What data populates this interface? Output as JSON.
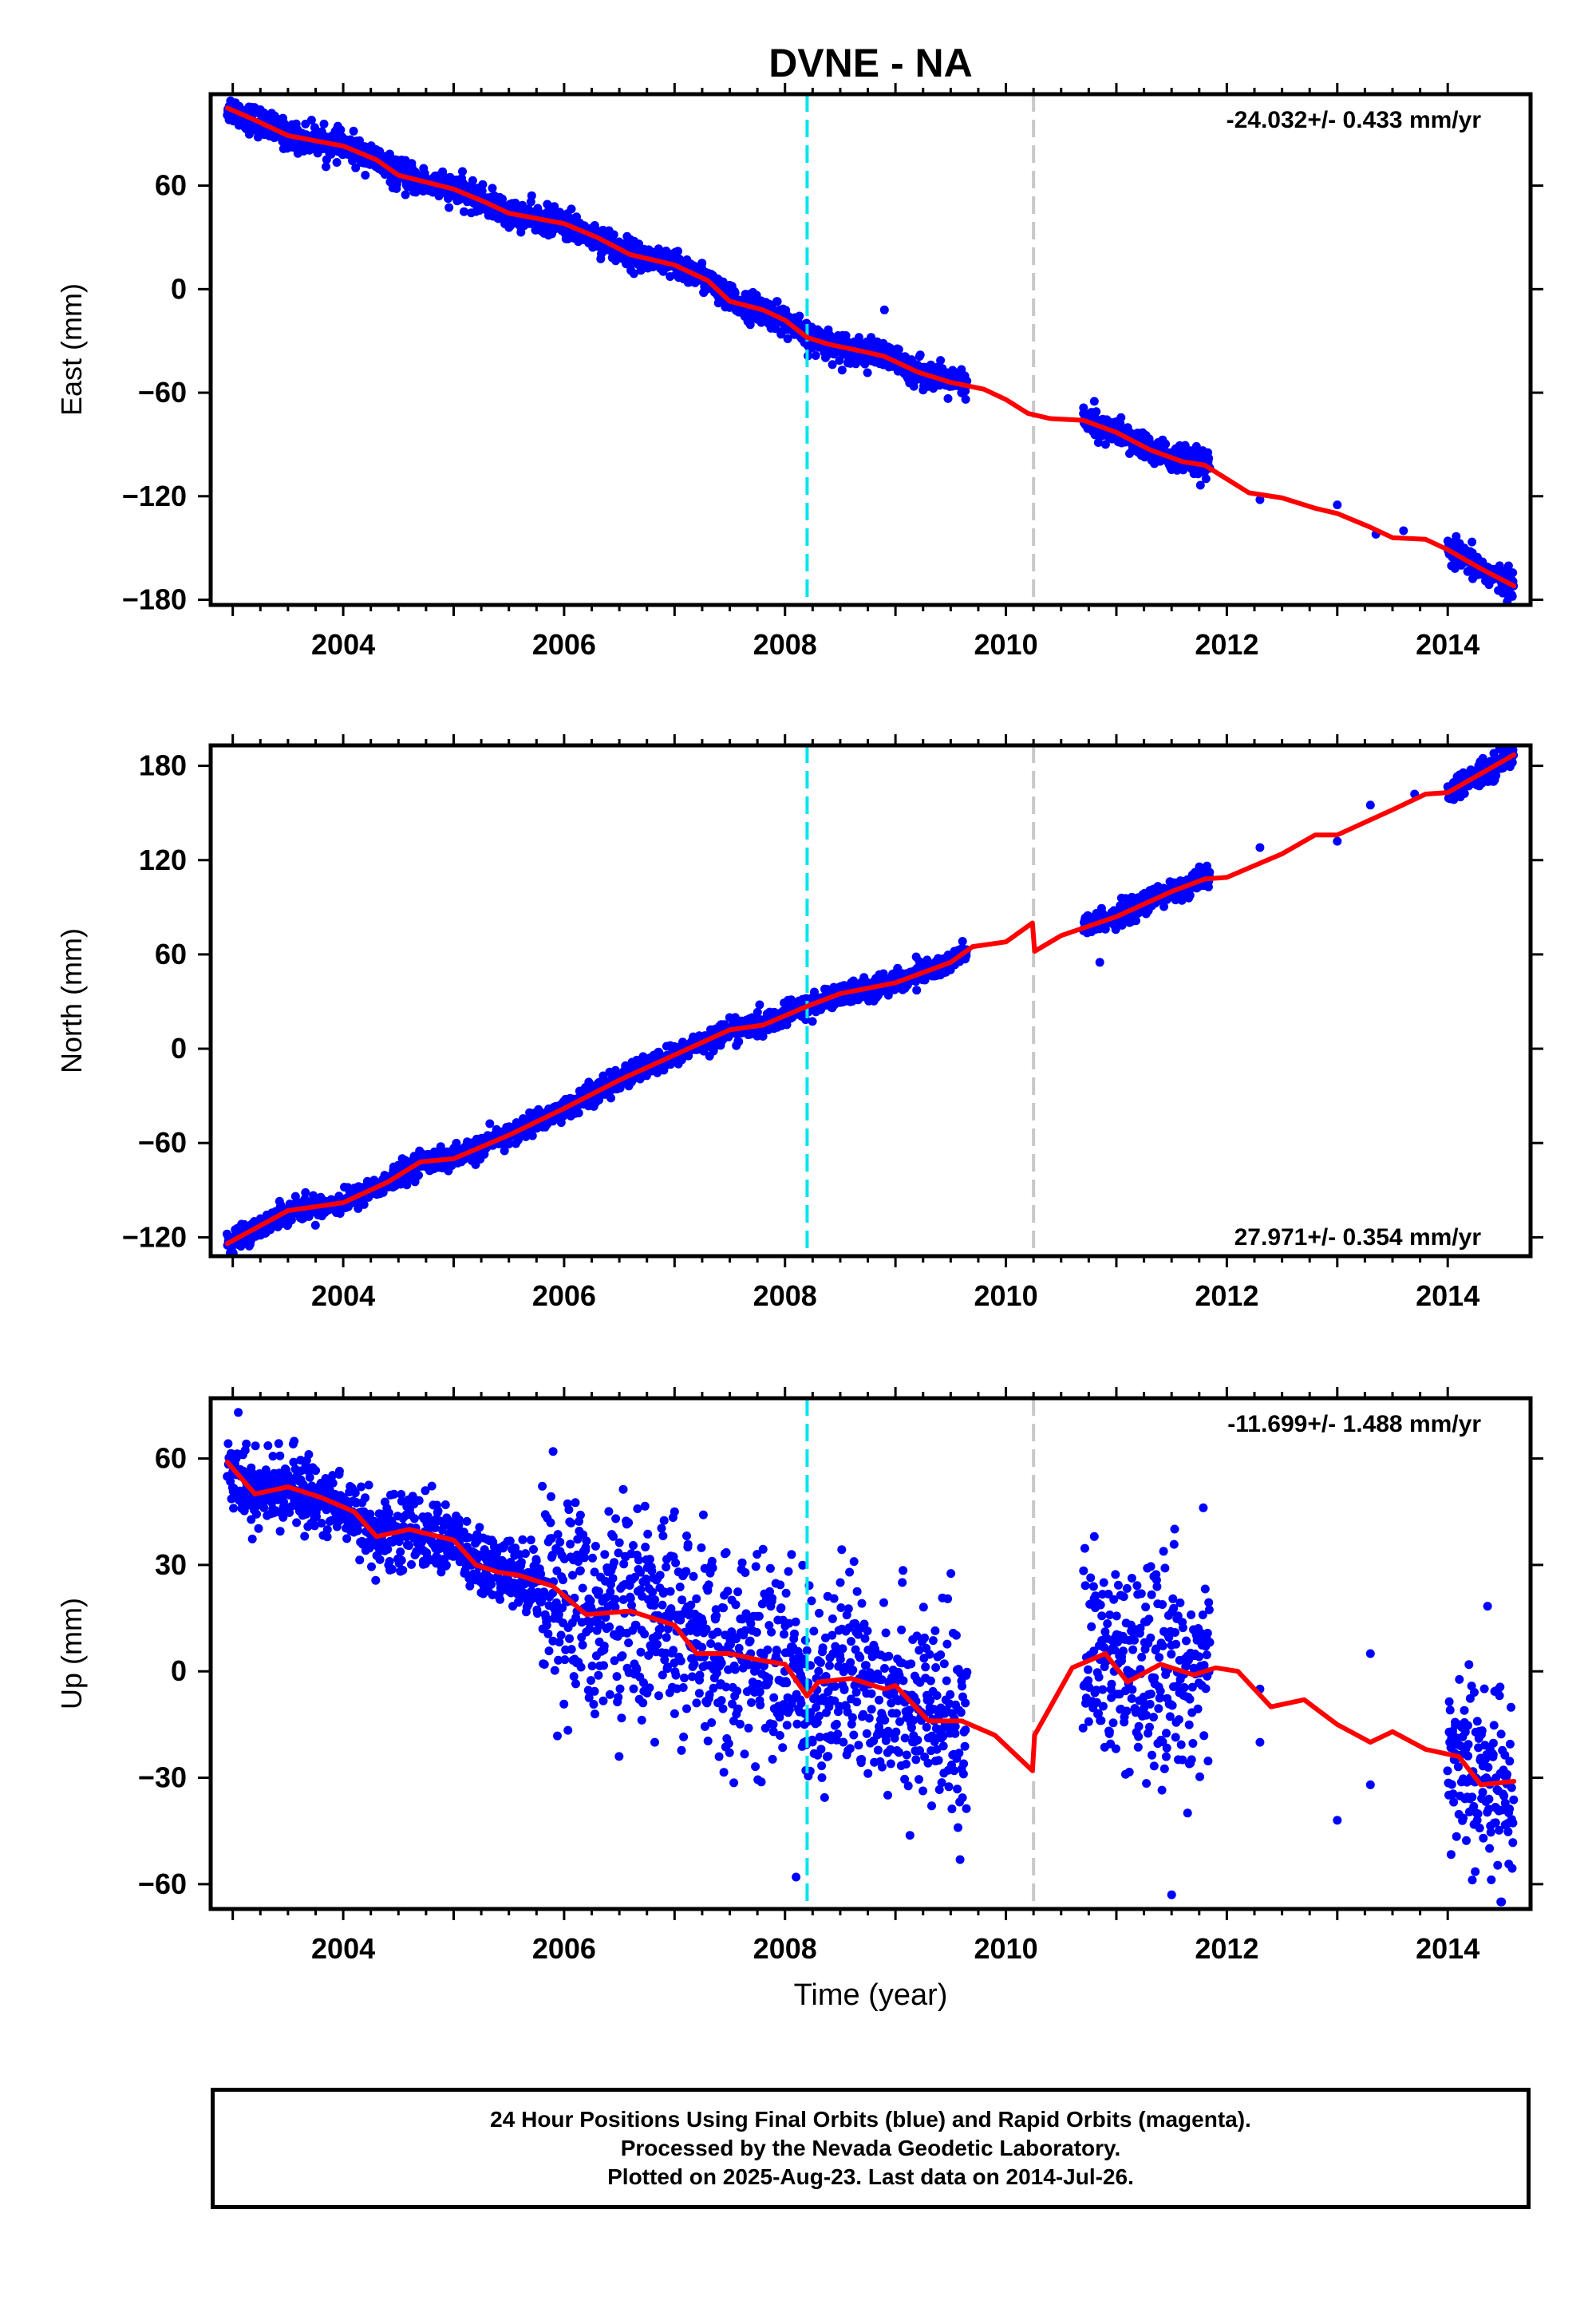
{
  "title": "DVNE - NA",
  "xlabel": "Time (year)",
  "x_ticks": [
    "2004",
    "2006",
    "2008",
    "2010",
    "2012",
    "2014"
  ],
  "colors": {
    "points": "#0000ff",
    "fit": "#ff0000",
    "event_cyan": "#00e5ee",
    "event_gray": "#c8c8c8",
    "axes": "#000000"
  },
  "chart_data": [
    {
      "type": "scatter",
      "name": "east",
      "ylabel": "East (mm)",
      "rate_label": "-24.032+/- 0.433 mm/yr",
      "rate_position": "top-right",
      "xlim": [
        2002.8,
        2014.75
      ],
      "ylim": [
        -183,
        113
      ],
      "y_ticks": [
        60,
        0,
        -60,
        -120,
        -180
      ],
      "y_tick_labels": [
        "60",
        "0",
        "−60",
        "−120",
        "−180"
      ],
      "event_lines": [
        {
          "x": 2008.2,
          "color": "cyan"
        },
        {
          "x": 2010.25,
          "color": "gray"
        }
      ],
      "fit_line": [
        [
          2002.95,
          105
        ],
        [
          2003.2,
          98
        ],
        [
          2003.5,
          89
        ],
        [
          2004.0,
          83
        ],
        [
          2004.3,
          75
        ],
        [
          2004.5,
          66
        ],
        [
          2005.0,
          58
        ],
        [
          2005.3,
          50
        ],
        [
          2005.5,
          44
        ],
        [
          2006.0,
          38
        ],
        [
          2006.3,
          30
        ],
        [
          2006.6,
          20
        ],
        [
          2007.0,
          14
        ],
        [
          2007.3,
          5
        ],
        [
          2007.5,
          -7
        ],
        [
          2007.8,
          -12
        ],
        [
          2008.0,
          -18
        ],
        [
          2008.2,
          -28
        ],
        [
          2008.4,
          -32
        ],
        [
          2008.7,
          -36
        ],
        [
          2008.9,
          -39
        ],
        [
          2009.2,
          -48
        ],
        [
          2009.5,
          -54
        ],
        [
          2009.8,
          -58
        ],
        [
          2010.0,
          -64
        ],
        [
          2010.2,
          -72
        ],
        [
          2010.4,
          -75
        ],
        [
          2010.7,
          -76
        ],
        [
          2011.0,
          -83
        ],
        [
          2011.3,
          -93
        ],
        [
          2011.6,
          -100
        ],
        [
          2011.8,
          -102
        ],
        [
          2012.0,
          -110
        ],
        [
          2012.2,
          -118
        ],
        [
          2012.5,
          -121
        ],
        [
          2012.8,
          -127
        ],
        [
          2013.0,
          -130
        ],
        [
          2013.3,
          -138
        ],
        [
          2013.5,
          -144
        ],
        [
          2013.8,
          -145
        ],
        [
          2014.0,
          -151
        ],
        [
          2014.3,
          -162
        ],
        [
          2014.6,
          -172
        ]
      ],
      "point_segments": [
        [
          2002.95,
          2009.65
        ],
        [
          2010.7,
          2011.85
        ],
        [
          2014.0,
          2014.6
        ]
      ],
      "sparse_points": [
        [
          2008.9,
          -12
        ],
        [
          2010.8,
          -65
        ],
        [
          2012.3,
          -122
        ],
        [
          2013.0,
          -125
        ],
        [
          2013.35,
          -142
        ],
        [
          2013.6,
          -140
        ]
      ],
      "scatter_sd": 4
    },
    {
      "type": "scatter",
      "name": "north",
      "ylabel": "North (mm)",
      "rate_label": "27.971+/- 0.354 mm/yr",
      "rate_position": "bottom-right",
      "xlim": [
        2002.8,
        2014.75
      ],
      "ylim": [
        -132,
        193
      ],
      "y_ticks": [
        180,
        120,
        60,
        0,
        -60,
        -120
      ],
      "y_tick_labels": [
        "180",
        "120",
        "60",
        "0",
        "−60",
        "−120"
      ],
      "event_lines": [
        {
          "x": 2008.2,
          "color": "cyan"
        },
        {
          "x": 2010.25,
          "color": "gray"
        }
      ],
      "fit_line": [
        [
          2002.95,
          -124
        ],
        [
          2003.5,
          -103
        ],
        [
          2004.0,
          -98
        ],
        [
          2004.4,
          -85
        ],
        [
          2004.7,
          -72
        ],
        [
          2005.0,
          -70
        ],
        [
          2005.5,
          -55
        ],
        [
          2006.0,
          -38
        ],
        [
          2006.5,
          -20
        ],
        [
          2007.0,
          -4
        ],
        [
          2007.5,
          12
        ],
        [
          2007.8,
          15
        ],
        [
          2008.2,
          27
        ],
        [
          2008.5,
          35
        ],
        [
          2009.0,
          42
        ],
        [
          2009.5,
          55
        ],
        [
          2009.7,
          65
        ],
        [
          2010.0,
          68
        ],
        [
          2010.24,
          80
        ],
        [
          2010.26,
          62
        ],
        [
          2010.5,
          72
        ],
        [
          2011.0,
          84
        ],
        [
          2011.5,
          100
        ],
        [
          2011.8,
          108
        ],
        [
          2012.0,
          109
        ],
        [
          2012.5,
          124
        ],
        [
          2012.8,
          136
        ],
        [
          2013.0,
          136
        ],
        [
          2013.5,
          152
        ],
        [
          2013.8,
          162
        ],
        [
          2014.0,
          163
        ],
        [
          2014.6,
          187
        ]
      ],
      "point_segments": [
        [
          2002.95,
          2009.65
        ],
        [
          2010.7,
          2011.85
        ],
        [
          2014.0,
          2014.6
        ]
      ],
      "sparse_points": [
        [
          2010.85,
          55
        ],
        [
          2012.3,
          128
        ],
        [
          2013.0,
          132
        ],
        [
          2013.3,
          155
        ],
        [
          2013.7,
          162
        ]
      ],
      "scatter_sd": 3.5
    },
    {
      "type": "scatter",
      "name": "up",
      "ylabel": "Up (mm)",
      "rate_label": "-11.699+/- 1.488 mm/yr",
      "rate_position": "top-right",
      "xlim": [
        2002.8,
        2014.75
      ],
      "ylim": [
        -67,
        77
      ],
      "y_ticks": [
        60,
        30,
        0,
        -30,
        -60
      ],
      "y_tick_labels": [
        "60",
        "30",
        "0",
        "−30",
        "−60"
      ],
      "event_lines": [
        {
          "x": 2008.2,
          "color": "cyan"
        },
        {
          "x": 2010.25,
          "color": "gray"
        }
      ],
      "fit_line": [
        [
          2002.95,
          59
        ],
        [
          2003.2,
          50
        ],
        [
          2003.5,
          52
        ],
        [
          2003.8,
          49
        ],
        [
          2004.1,
          45
        ],
        [
          2004.3,
          38
        ],
        [
          2004.6,
          40
        ],
        [
          2005.0,
          37
        ],
        [
          2005.2,
          30
        ],
        [
          2005.4,
          28
        ],
        [
          2005.6,
          27
        ],
        [
          2005.9,
          24
        ],
        [
          2006.2,
          16
        ],
        [
          2006.6,
          17
        ],
        [
          2007.0,
          13
        ],
        [
          2007.2,
          5
        ],
        [
          2007.5,
          5
        ],
        [
          2007.8,
          3
        ],
        [
          2008.0,
          2
        ],
        [
          2008.2,
          -7
        ],
        [
          2008.3,
          -3
        ],
        [
          2008.6,
          -2
        ],
        [
          2008.9,
          -5
        ],
        [
          2009.0,
          -4
        ],
        [
          2009.3,
          -14
        ],
        [
          2009.6,
          -14
        ],
        [
          2009.9,
          -18
        ],
        [
          2010.24,
          -28
        ],
        [
          2010.26,
          -18
        ],
        [
          2010.6,
          1
        ],
        [
          2010.9,
          5
        ],
        [
          2011.1,
          -3
        ],
        [
          2011.4,
          2
        ],
        [
          2011.7,
          -1
        ],
        [
          2011.9,
          1
        ],
        [
          2012.1,
          0
        ],
        [
          2012.4,
          -10
        ],
        [
          2012.7,
          -8
        ],
        [
          2013.0,
          -15
        ],
        [
          2013.3,
          -20
        ],
        [
          2013.5,
          -17
        ],
        [
          2013.8,
          -22
        ],
        [
          2014.1,
          -24
        ],
        [
          2014.3,
          -32
        ],
        [
          2014.6,
          -31
        ]
      ],
      "point_segments": [
        [
          2002.95,
          2009.65
        ],
        [
          2010.7,
          2011.85
        ],
        [
          2014.0,
          2014.6
        ]
      ],
      "sparse_points": [
        [
          2003.05,
          73
        ],
        [
          2005.9,
          62
        ],
        [
          2007.0,
          45
        ],
        [
          2008.1,
          -58
        ],
        [
          2010.8,
          38
        ],
        [
          2011.5,
          -63
        ],
        [
          2012.3,
          -5
        ],
        [
          2012.3,
          -20
        ],
        [
          2013.0,
          -42
        ],
        [
          2013.3,
          5
        ],
        [
          2013.3,
          -32
        ]
      ],
      "scatter_sd": 14
    }
  ],
  "caption": {
    "line1": "24 Hour Positions Using Final Orbits (blue) and Rapid Orbits (magenta).",
    "line2": "Processed by the Nevada Geodetic Laboratory.",
    "line3": "Plotted on 2025-Aug-23. Last data on 2014-Jul-26."
  }
}
